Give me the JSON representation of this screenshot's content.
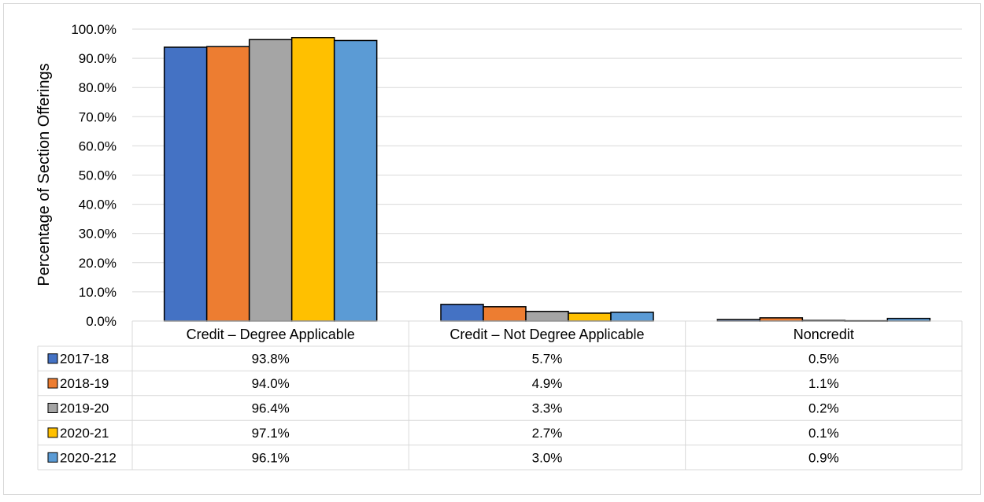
{
  "chart_data": {
    "type": "bar",
    "title": "",
    "xlabel": "",
    "ylabel": "Percentage of Section Offerings",
    "ylim": [
      0,
      100
    ],
    "y_tick_step": 10,
    "y_tick_labels": [
      "0.0%",
      "10.0%",
      "20.0%",
      "30.0%",
      "40.0%",
      "50.0%",
      "60.0%",
      "70.0%",
      "80.0%",
      "90.0%",
      "100.0%"
    ],
    "grid": true,
    "legend": "data-table-below",
    "categories": [
      "Credit – Degree Applicable",
      "Credit – Not Degree Applicable",
      "Noncredit"
    ],
    "series": [
      {
        "name": "2017-18",
        "color": "#4472c4",
        "values": [
          93.8,
          5.7,
          0.5
        ],
        "labels": [
          "93.8%",
          "5.7%",
          "0.5%"
        ]
      },
      {
        "name": "2018-19",
        "color": "#ed7d31",
        "values": [
          94.0,
          4.9,
          1.1
        ],
        "labels": [
          "94.0%",
          "4.9%",
          "1.1%"
        ]
      },
      {
        "name": "2019-20",
        "color": "#a5a5a5",
        "values": [
          96.4,
          3.3,
          0.2
        ],
        "labels": [
          "96.4%",
          "3.3%",
          "0.2%"
        ]
      },
      {
        "name": "2020-21",
        "color": "#ffc000",
        "values": [
          97.1,
          2.7,
          0.1
        ],
        "labels": [
          "97.1%",
          "2.7%",
          "0.1%"
        ]
      },
      {
        "name": "2020-212",
        "color": "#5b9bd5",
        "values": [
          96.1,
          3.0,
          0.9
        ],
        "labels": [
          "96.1%",
          "3.0%",
          "0.9%"
        ]
      }
    ]
  }
}
